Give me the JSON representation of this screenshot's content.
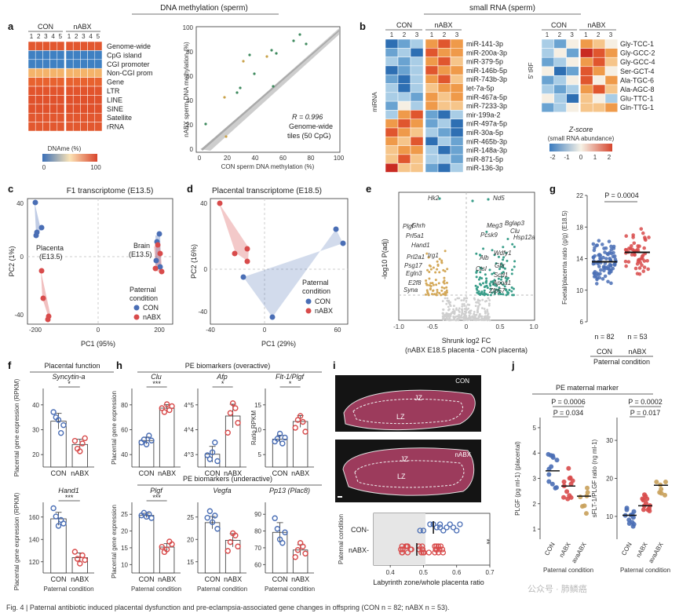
{
  "panel_letters": {
    "a": "a",
    "b": "b",
    "c": "c",
    "d": "d",
    "e": "e",
    "f": "f",
    "g": "g",
    "h": "h",
    "i": "i",
    "j": "j"
  },
  "colors": {
    "con": "#4a6eb5",
    "nabx": "#d84b4b",
    "avaabx": "#c8a05a",
    "teal": "#3a9e8a",
    "tan": "#d4a95a"
  },
  "panel_a": {
    "title": "DNA methylation (sperm)",
    "groups": [
      "CON",
      "nABX"
    ],
    "replicates": [
      "1",
      "2",
      "3",
      "4",
      "5",
      "1",
      "2",
      "3",
      "4",
      "5"
    ],
    "rows": [
      "Genome-wide",
      "CpG island",
      "CGI promoter",
      "Non-CGI prom",
      "Gene",
      "LTR",
      "LINE",
      "SINE",
      "Satellite",
      "rRNA"
    ],
    "legend_title": "DNAme (%)",
    "legend_ticks": [
      "0",
      "100"
    ]
  },
  "panel_a_scatter": {
    "ylabel": "nABX sperm DNA methylation (%)",
    "xlabel": "CON sperm DNA methylation (%)",
    "ticks": [
      "0",
      "20",
      "40",
      "60",
      "80",
      "100"
    ],
    "annot_r": "R = 0.996",
    "annot_1": "Genome-wide",
    "annot_2": "tiles (50 CpG)"
  },
  "panel_b": {
    "title": "small RNA (sperm)",
    "groups": [
      "CON",
      "nABX"
    ],
    "replicates": [
      "1",
      "2",
      "3",
      "1",
      "2",
      "3"
    ],
    "mirna_label": "miRNA",
    "mirnas": [
      "miR-141-3p",
      "miR-200a-3p",
      "miR-379-5p",
      "miR-146b-5p",
      "miR-743b-3p",
      "let-7a-5p",
      "miR-467a-5p",
      "miR-7233-3p",
      "mir-199a-2",
      "miR-497a-5p",
      "miR-30a-5p",
      "miR-465b-3p",
      "miR-148a-3p",
      "miR-871-5p",
      "miR-136-3p"
    ],
    "trf_label": "5' tRF",
    "trfs": [
      "Gly-TCC-1",
      "Gly-GCC-2",
      "Gly-GCC-4",
      "Ser-GCT-4",
      "Ala-TGC-6",
      "Ala-AGC-8",
      "Glu-TTC-1",
      "Gln-TTG-1"
    ],
    "legend_title": "Z-score",
    "legend_sub": "(small RNA abundance)",
    "legend_ticks": [
      "-2",
      "-1",
      "0",
      "1",
      "2"
    ]
  },
  "panel_c": {
    "title": "F1 transcriptome (E13.5)",
    "xlabel": "PC1 (95%)",
    "ylabel": "PC2 (1%)",
    "xticks": [
      "-200",
      "0",
      "200"
    ],
    "yticks": [
      "40",
      "0",
      "-40"
    ],
    "placenta_label": "Placenta",
    "placenta_sub": "(E13.5)",
    "brain_label": "Brain",
    "brain_sub": "(E13.5)",
    "legend_title_1": "Paternal",
    "legend_title_2": "condition",
    "legend": [
      "CON",
      "nABX"
    ]
  },
  "panel_d": {
    "title": "Placental transcriptome (E18.5)",
    "xlabel": "PC1 (29%)",
    "ylabel": "PC2 (16%)",
    "xticks": [
      "-40",
      "0",
      "60"
    ],
    "yticks": [
      "40",
      "0",
      "-40"
    ],
    "legend_title_1": "Paternal",
    "legend_title_2": "condition",
    "legend": [
      "CON",
      "nABX"
    ]
  },
  "panel_e": {
    "ylabel": "-log10 P(adj)",
    "xlabel_1": "Shrunk log2 FC",
    "xlabel_2": "(nABX E18.5 placenta - CON placenta)",
    "xticks": [
      "-1.0",
      "-0.5",
      "0",
      "0.5",
      "1.0"
    ],
    "genes_left": [
      "Hk2",
      "Ghrh",
      "Plgf",
      "Prl5a1",
      "Hand1",
      "Prl2a1",
      "Irg1",
      "Psg17",
      "Egln3",
      "E2f8",
      "Syna"
    ],
    "genes_right": [
      "Nd5",
      "Bglap3",
      "Meg3",
      "Clu",
      "Pcsk9",
      "Hsp12a",
      "Wdfy1",
      "Alb",
      "Ghr",
      "Ctsl",
      "Scd1",
      "Apoa1",
      "Zfp57"
    ]
  },
  "panel_g": {
    "ylabel": "Foetal/placenta ratio (g/g) (E18.5)",
    "pval": "P = 0.0004",
    "yticks": [
      "6",
      "10",
      "14",
      "18",
      "22"
    ],
    "n_con": "n = 82",
    "n_nabx": "n = 53",
    "groups": [
      "CON",
      "nABX"
    ],
    "xlabel": "Paternal condition",
    "chart_data": {
      "type": "scatter",
      "categories": [
        "CON",
        "nABX"
      ],
      "n": [
        82,
        53
      ],
      "medians": [
        13.6,
        14.8
      ],
      "ylim": [
        6,
        22
      ],
      "pval": "P = 0.0004"
    }
  },
  "panel_f": {
    "header": "Placental function",
    "ylabel": "Placental gene expression (RPKM)",
    "xlabel": "Paternal condition",
    "groups": [
      "CON",
      "nABX"
    ],
    "plots": [
      {
        "gene": "Syncytin-a",
        "sig": "*",
        "yticks": [
          "20",
          "30",
          "40"
        ],
        "ylim": [
          15,
          45
        ],
        "con": [
          36,
          34,
          33,
          28,
          31
        ],
        "nabx": [
          25,
          22,
          21,
          24,
          26
        ],
        "con_mean": 32.5,
        "nabx_mean": 23.6,
        "con_sd": 3,
        "nabx_sd": 2
      },
      {
        "gene": "Hand1",
        "sig": "***",
        "yticks": [
          "120",
          "140",
          "160"
        ],
        "ylim": [
          110,
          170
        ],
        "con": [
          165,
          158,
          150,
          155,
          152
        ],
        "nabx": [
          128,
          122,
          118,
          125,
          121
        ],
        "con_mean": 156,
        "nabx_mean": 123,
        "con_sd": 5.5,
        "nabx_sd": 4
      }
    ]
  },
  "panel_h": {
    "header_over": "PE biomarkers (overactive)",
    "header_under": "PE biomarkers (underactive)",
    "ylabel": "Placental gene expression",
    "xlabel": "Paternal condition",
    "groups": [
      "CON",
      "nABX"
    ],
    "over": [
      {
        "gene": "Clu",
        "sig": "***",
        "yticks": [
          "40",
          "60",
          "80"
        ],
        "ylim": [
          20,
          100
        ],
        "con": [
          45,
          48,
          43,
          52,
          47
        ],
        "nabx": [
          80,
          76,
          84,
          78,
          82
        ],
        "con_mean": 47,
        "nabx_mean": 80,
        "con_sd": 3.5,
        "nabx_sd": 3.5
      },
      {
        "gene": "Afp",
        "sig": "*",
        "yticks": [
          "4^3",
          "4^4",
          "4^5"
        ],
        "ylim": [
          0,
          8
        ],
        "con": [
          1.2,
          0.8,
          1.5,
          2.5,
          0.6
        ],
        "nabx": [
          3.5,
          5.5,
          6.5,
          6,
          4.5
        ],
        "con_mean": 1.3,
        "nabx_mean": 5.2,
        "con_sd": 0.8,
        "nabx_sd": 1.2
      },
      {
        "gene": "Flt-1/Plgf",
        "sig": "*",
        "ratio_label": "Ratio RPKM",
        "yticks": [
          "5",
          "10",
          "15"
        ],
        "ylim": [
          0,
          20
        ],
        "con": [
          6.5,
          7.2,
          8.5,
          6,
          7.5
        ],
        "nabx": [
          10,
          12,
          13,
          11.5,
          9
        ],
        "con_mean": 7.1,
        "nabx_mean": 11.6,
        "con_sd": 1,
        "nabx_sd": 1.5
      }
    ],
    "under": [
      {
        "gene": "Plgf",
        "sig": "***",
        "yticks": [
          "10",
          "15",
          "20",
          "25"
        ],
        "ylim": [
          5,
          32
        ],
        "con": [
          27,
          28,
          26.5,
          27.5,
          26
        ],
        "nabx": [
          15,
          13,
          14,
          17,
          16
        ],
        "con_mean": 27,
        "nabx_mean": 14.9,
        "con_sd": 0.8,
        "nabx_sd": 1.3
      },
      {
        "gene": "Vegfa",
        "sig": "",
        "yticks": [
          "15",
          "20",
          "25"
        ],
        "ylim": [
          12,
          28
        ],
        "con": [
          24.5,
          26,
          23.5,
          25,
          22
        ],
        "nabx": [
          17,
          19,
          21,
          20.5,
          18
        ],
        "con_mean": 23.4,
        "nabx_mean": 19.4,
        "con_sd": 1.4,
        "nabx_sd": 1.5
      },
      {
        "gene": "Pp13 (Plac8)",
        "sig": "",
        "yticks": [
          "60",
          "70",
          "80",
          "90"
        ],
        "ylim": [
          55,
          95
        ],
        "con": [
          86,
          80,
          74,
          72,
          78
        ],
        "nabx": [
          64,
          68,
          72,
          70,
          66
        ],
        "con_mean": 78,
        "nabx_mean": 68,
        "con_sd": 5.5,
        "nabx_sd": 3
      }
    ]
  },
  "panel_i": {
    "label_jz": "JZ",
    "label_lz": "LZ",
    "tag_con": "CON",
    "tag_nabx": "nABX",
    "ylabel": "Paternal condition",
    "groups": [
      "CON-",
      "nABX-"
    ],
    "sig": "**",
    "xticks": [
      "0.4",
      "0.5",
      "0.6",
      "0.7"
    ],
    "xlabel": "Labyrinth zone/whole placenta ratio"
  },
  "panel_j": {
    "header": "PE maternal marker",
    "groups": [
      "CON",
      "nABX",
      "avaABX"
    ],
    "xlabel": "Paternal condition",
    "plgf": {
      "ylabel": "PLGF (pg ml-1) (placental)",
      "yticks": [
        "1",
        "2",
        "3",
        "4",
        "5"
      ],
      "p1": "P = 0.0006",
      "p2": "P = 0.034",
      "medians": [
        3.3,
        2.7,
        2.3
      ]
    },
    "ratio": {
      "ylabel": "sFLT-1/PLGF ratio (ng ml-1)",
      "yticks": [
        "10",
        "20",
        "30"
      ],
      "p1": "P = 0.0002",
      "p2": "P = 0.017",
      "medians": [
        10.3,
        12.8,
        18.2
      ]
    }
  },
  "watermark": "公众号 · 肺鳞癌",
  "footer": "Fig. 4 | Paternal antibiotic induced placental dysfunction and pre-eclampsia-associated gene changes in offspring (CON n = 82; nABX n = 53)."
}
